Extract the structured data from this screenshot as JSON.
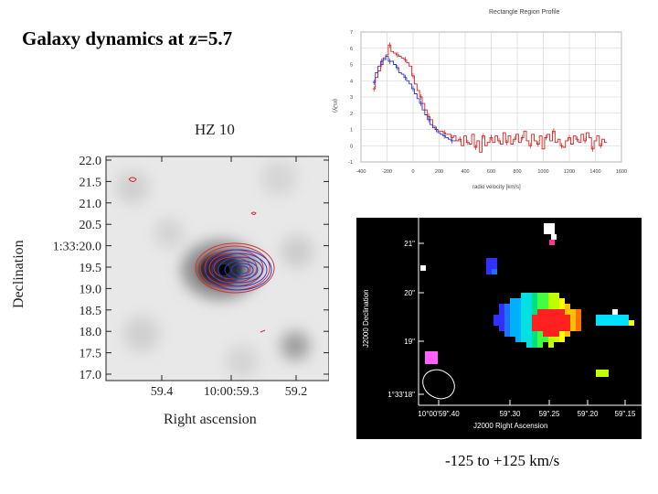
{
  "slide": {
    "title": "Galaxy dynamics at z=5.7",
    "velocity_caption": "-125 to +125 km/s"
  },
  "contour_map": {
    "title": "HZ 10",
    "ylabel": "Declination",
    "xlabel": "Right ascension",
    "y_ticks": [
      "22.0",
      "21.5",
      "21.0",
      "20.5",
      "1:33:20.0",
      "19.5",
      "19.0",
      "18.5",
      "18.0",
      "17.5",
      "17.0"
    ],
    "x_ticks": [
      "59.4",
      "10:00:59.3",
      "59.2"
    ]
  },
  "velocity_map": {
    "ylabel": "J2000 Declination",
    "xlabel": "J2000 Right Ascension",
    "y_ticks": [
      "21\"",
      "20\"",
      "19\"",
      "1°33'18\""
    ],
    "x_ticks": [
      "10°00'59\".40",
      "59\".30",
      "59\".25",
      "59\".20",
      "59\".15"
    ]
  },
  "chart_data": {
    "type": "line",
    "title": "Rectangle Region Profile",
    "xlabel": "radio velocity [km/s]",
    "ylabel": "(mJy)",
    "x_ticks": [
      "-400",
      "-200",
      "0",
      "200",
      "400",
      "600",
      "800",
      "1000",
      "1200",
      "1400",
      "1600"
    ],
    "y_ticks": [
      "7",
      "6",
      "5",
      "4",
      "3",
      "2",
      "1",
      "0",
      "-1"
    ],
    "xlim": [
      -400,
      1600
    ],
    "ylim": [
      -1,
      7
    ],
    "series": [
      {
        "name": "red",
        "color": "#d42020",
        "x": [
          -300,
          -280,
          -260,
          -240,
          -220,
          -200,
          -180,
          -160,
          -140,
          -120,
          -100,
          -80,
          -60,
          -40,
          -20,
          0,
          20,
          40,
          60,
          80,
          100,
          120,
          140,
          160,
          180,
          200,
          220,
          240,
          260,
          280,
          300,
          320,
          340,
          360,
          380,
          400,
          420,
          440,
          460,
          480,
          500,
          520,
          540,
          560,
          580,
          600,
          620,
          640,
          660,
          680,
          700,
          720,
          740,
          760,
          780,
          800,
          820,
          840,
          860,
          880,
          900,
          920,
          940,
          960,
          980,
          1000,
          1020,
          1040,
          1060,
          1080,
          1100,
          1120,
          1140,
          1160,
          1180,
          1200,
          1220,
          1240,
          1260,
          1280,
          1300,
          1320,
          1340,
          1360,
          1380,
          1400,
          1420,
          1440,
          1460,
          1480
        ],
        "values": [
          3.5,
          4.2,
          4.6,
          5.0,
          5.4,
          5.6,
          6.2,
          5.8,
          5.7,
          5.6,
          5.5,
          5.4,
          5.3,
          5.1,
          4.9,
          4.3,
          3.8,
          3.4,
          3.0,
          2.6,
          2.2,
          1.8,
          1.6,
          1.2,
          1.0,
          0.9,
          0.9,
          0.8,
          0.7,
          0.7,
          0.5,
          0.6,
          0.3,
          0.4,
          0.0,
          0.6,
          0.2,
          0.1,
          0.7,
          -0.1,
          0.3,
          -0.4,
          0.6,
          0.0,
          0.2,
          0.5,
          0.2,
          0.6,
          0.3,
          0.1,
          0.8,
          0.2,
          0.6,
          0.1,
          0.4,
          0.7,
          0.2,
          0.5,
          0.9,
          0.3,
          0.0,
          0.7,
          0.3,
          0.1,
          0.6,
          -0.2,
          0.5,
          0.7,
          0.3,
          0.9,
          0.2,
          0.4,
          0.0,
          -0.1,
          0.3,
          0.5,
          0.1,
          0.6,
          0.4,
          0.2,
          0.7,
          0.3,
          0.8,
          0.5,
          -0.2,
          0.3,
          0.6,
          0.0,
          0.4,
          0.2
        ]
      },
      {
        "name": "blue",
        "color": "#3030c8",
        "x": [
          -300,
          -280,
          -260,
          -240,
          -220,
          -200,
          -180,
          -160,
          -140,
          -120,
          -100,
          -80,
          -60,
          -40,
          -20,
          0,
          20,
          40,
          60,
          80,
          100,
          120,
          140,
          160,
          180,
          200,
          220,
          240,
          260,
          280,
          300,
          320
        ],
        "values": [
          3.9,
          4.5,
          4.9,
          5.2,
          5.3,
          5.5,
          5.2,
          5.2,
          5.0,
          4.8,
          4.5,
          4.4,
          4.2,
          4.0,
          3.8,
          3.5,
          3.2,
          2.9,
          2.6,
          2.2,
          1.9,
          1.6,
          1.3,
          1.1,
          1.0,
          0.8,
          0.7,
          0.6,
          0.5,
          0.4,
          0.3,
          0.3
        ]
      }
    ]
  }
}
